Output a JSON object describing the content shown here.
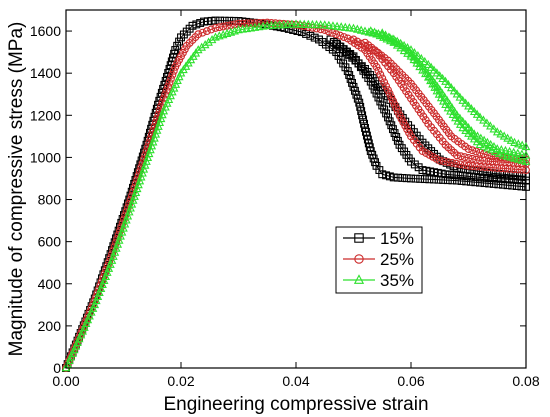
{
  "chart_data": {
    "type": "scatter",
    "xlabel": "Engineering compressive strain",
    "ylabel": "Magnitude of compressive stress (MPa)",
    "xlim": [
      0,
      0.08
    ],
    "ylim": [
      0,
      1700
    ],
    "xticks": [
      0.0,
      0.02,
      0.04,
      0.06,
      0.08
    ],
    "xtick_labels": [
      "0.00",
      "0.02",
      "0.04",
      "0.06",
      "0.08"
    ],
    "yticks": [
      0,
      200,
      400,
      600,
      800,
      1000,
      1200,
      1400,
      1600
    ],
    "ytick_labels": [
      "0",
      "200",
      "400",
      "600",
      "800",
      "1000",
      "1200",
      "1400",
      "1600"
    ],
    "grid": false,
    "legend_position": "center-right",
    "series": [
      {
        "name": "15%",
        "color": "#000000",
        "marker": "square",
        "curves": [
          [
            [
              0.0,
              0
            ],
            [
              0.002,
              130
            ],
            [
              0.005,
              330
            ],
            [
              0.008,
              560
            ],
            [
              0.011,
              800
            ],
            [
              0.014,
              1060
            ],
            [
              0.016,
              1250
            ],
            [
              0.018,
              1420
            ],
            [
              0.019,
              1510
            ],
            [
              0.02,
              1570
            ],
            [
              0.022,
              1625
            ],
            [
              0.024,
              1645
            ],
            [
              0.026,
              1650
            ],
            [
              0.03,
              1648
            ],
            [
              0.034,
              1635
            ],
            [
              0.038,
              1615
            ],
            [
              0.041,
              1595
            ],
            [
              0.044,
              1560
            ],
            [
              0.047,
              1500
            ],
            [
              0.049,
              1410
            ],
            [
              0.051,
              1260
            ],
            [
              0.052,
              1140
            ],
            [
              0.053,
              1030
            ],
            [
              0.054,
              960
            ],
            [
              0.055,
              920
            ],
            [
              0.057,
              905
            ],
            [
              0.06,
              900
            ],
            [
              0.064,
              895
            ],
            [
              0.068,
              890
            ],
            [
              0.072,
              880
            ],
            [
              0.076,
              870
            ],
            [
              0.08,
              860
            ]
          ],
          [
            [
              0.046,
              1560
            ],
            [
              0.05,
              1480
            ],
            [
              0.053,
              1360
            ],
            [
              0.056,
              1190
            ],
            [
              0.058,
              1060
            ],
            [
              0.06,
              980
            ],
            [
              0.062,
              940
            ],
            [
              0.066,
              920
            ],
            [
              0.072,
              905
            ],
            [
              0.08,
              890
            ]
          ],
          [
            [
              0.047,
              1540
            ],
            [
              0.052,
              1420
            ],
            [
              0.056,
              1290
            ],
            [
              0.059,
              1170
            ],
            [
              0.062,
              1070
            ],
            [
              0.065,
              990
            ],
            [
              0.068,
              950
            ],
            [
              0.074,
              925
            ],
            [
              0.08,
              910
            ]
          ]
        ]
      },
      {
        "name": "25%",
        "color": "#cc2a2a",
        "marker": "circle",
        "curves": [
          [
            [
              0.0,
              0
            ],
            [
              0.002,
              125
            ],
            [
              0.005,
              320
            ],
            [
              0.008,
              540
            ],
            [
              0.011,
              780
            ],
            [
              0.014,
              1030
            ],
            [
              0.017,
              1280
            ],
            [
              0.019,
              1430
            ],
            [
              0.021,
              1530
            ],
            [
              0.023,
              1585
            ],
            [
              0.026,
              1615
            ],
            [
              0.03,
              1635
            ],
            [
              0.035,
              1640
            ],
            [
              0.04,
              1630
            ],
            [
              0.045,
              1605
            ],
            [
              0.049,
              1565
            ],
            [
              0.052,
              1510
            ],
            [
              0.054,
              1430
            ],
            [
              0.056,
              1320
            ],
            [
              0.058,
              1200
            ],
            [
              0.06,
              1100
            ],
            [
              0.062,
              1030
            ],
            [
              0.065,
              985
            ],
            [
              0.07,
              960
            ],
            [
              0.075,
              950
            ],
            [
              0.08,
              940
            ]
          ],
          [
            [
              0.05,
              1560
            ],
            [
              0.054,
              1500
            ],
            [
              0.057,
              1400
            ],
            [
              0.06,
              1280
            ],
            [
              0.063,
              1160
            ],
            [
              0.066,
              1060
            ],
            [
              0.068,
              1010
            ],
            [
              0.072,
              985
            ],
            [
              0.08,
              970
            ]
          ],
          [
            [
              0.052,
              1545
            ],
            [
              0.056,
              1460
            ],
            [
              0.06,
              1350
            ],
            [
              0.064,
              1210
            ],
            [
              0.067,
              1100
            ],
            [
              0.07,
              1040
            ],
            [
              0.074,
              1005
            ],
            [
              0.08,
              990
            ]
          ]
        ]
      },
      {
        "name": "35%",
        "color": "#2ee02e",
        "marker": "triangle",
        "curves": [
          [
            [
              0.0,
              0
            ],
            [
              0.002,
              120
            ],
            [
              0.005,
              300
            ],
            [
              0.008,
              510
            ],
            [
              0.011,
              740
            ],
            [
              0.014,
              980
            ],
            [
              0.017,
              1220
            ],
            [
              0.02,
              1400
            ],
            [
              0.023,
              1510
            ],
            [
              0.026,
              1570
            ],
            [
              0.03,
              1605
            ],
            [
              0.035,
              1625
            ],
            [
              0.04,
              1632
            ],
            [
              0.045,
              1628
            ],
            [
              0.05,
              1612
            ],
            [
              0.054,
              1585
            ],
            [
              0.057,
              1545
            ],
            [
              0.06,
              1480
            ],
            [
              0.063,
              1380
            ],
            [
              0.066,
              1250
            ],
            [
              0.069,
              1140
            ],
            [
              0.072,
              1060
            ],
            [
              0.076,
              1010
            ],
            [
              0.08,
              980
            ]
          ],
          [
            [
              0.053,
              1600
            ],
            [
              0.057,
              1560
            ],
            [
              0.06,
              1510
            ],
            [
              0.063,
              1440
            ],
            [
              0.066,
              1360
            ],
            [
              0.069,
              1270
            ],
            [
              0.072,
              1190
            ],
            [
              0.075,
              1120
            ],
            [
              0.078,
              1070
            ],
            [
              0.08,
              1050
            ]
          ],
          [
            [
              0.055,
              1590
            ],
            [
              0.059,
              1520
            ],
            [
              0.062,
              1430
            ],
            [
              0.065,
              1320
            ],
            [
              0.068,
              1200
            ],
            [
              0.071,
              1110
            ],
            [
              0.075,
              1040
            ],
            [
              0.08,
              1010
            ]
          ]
        ]
      }
    ]
  }
}
